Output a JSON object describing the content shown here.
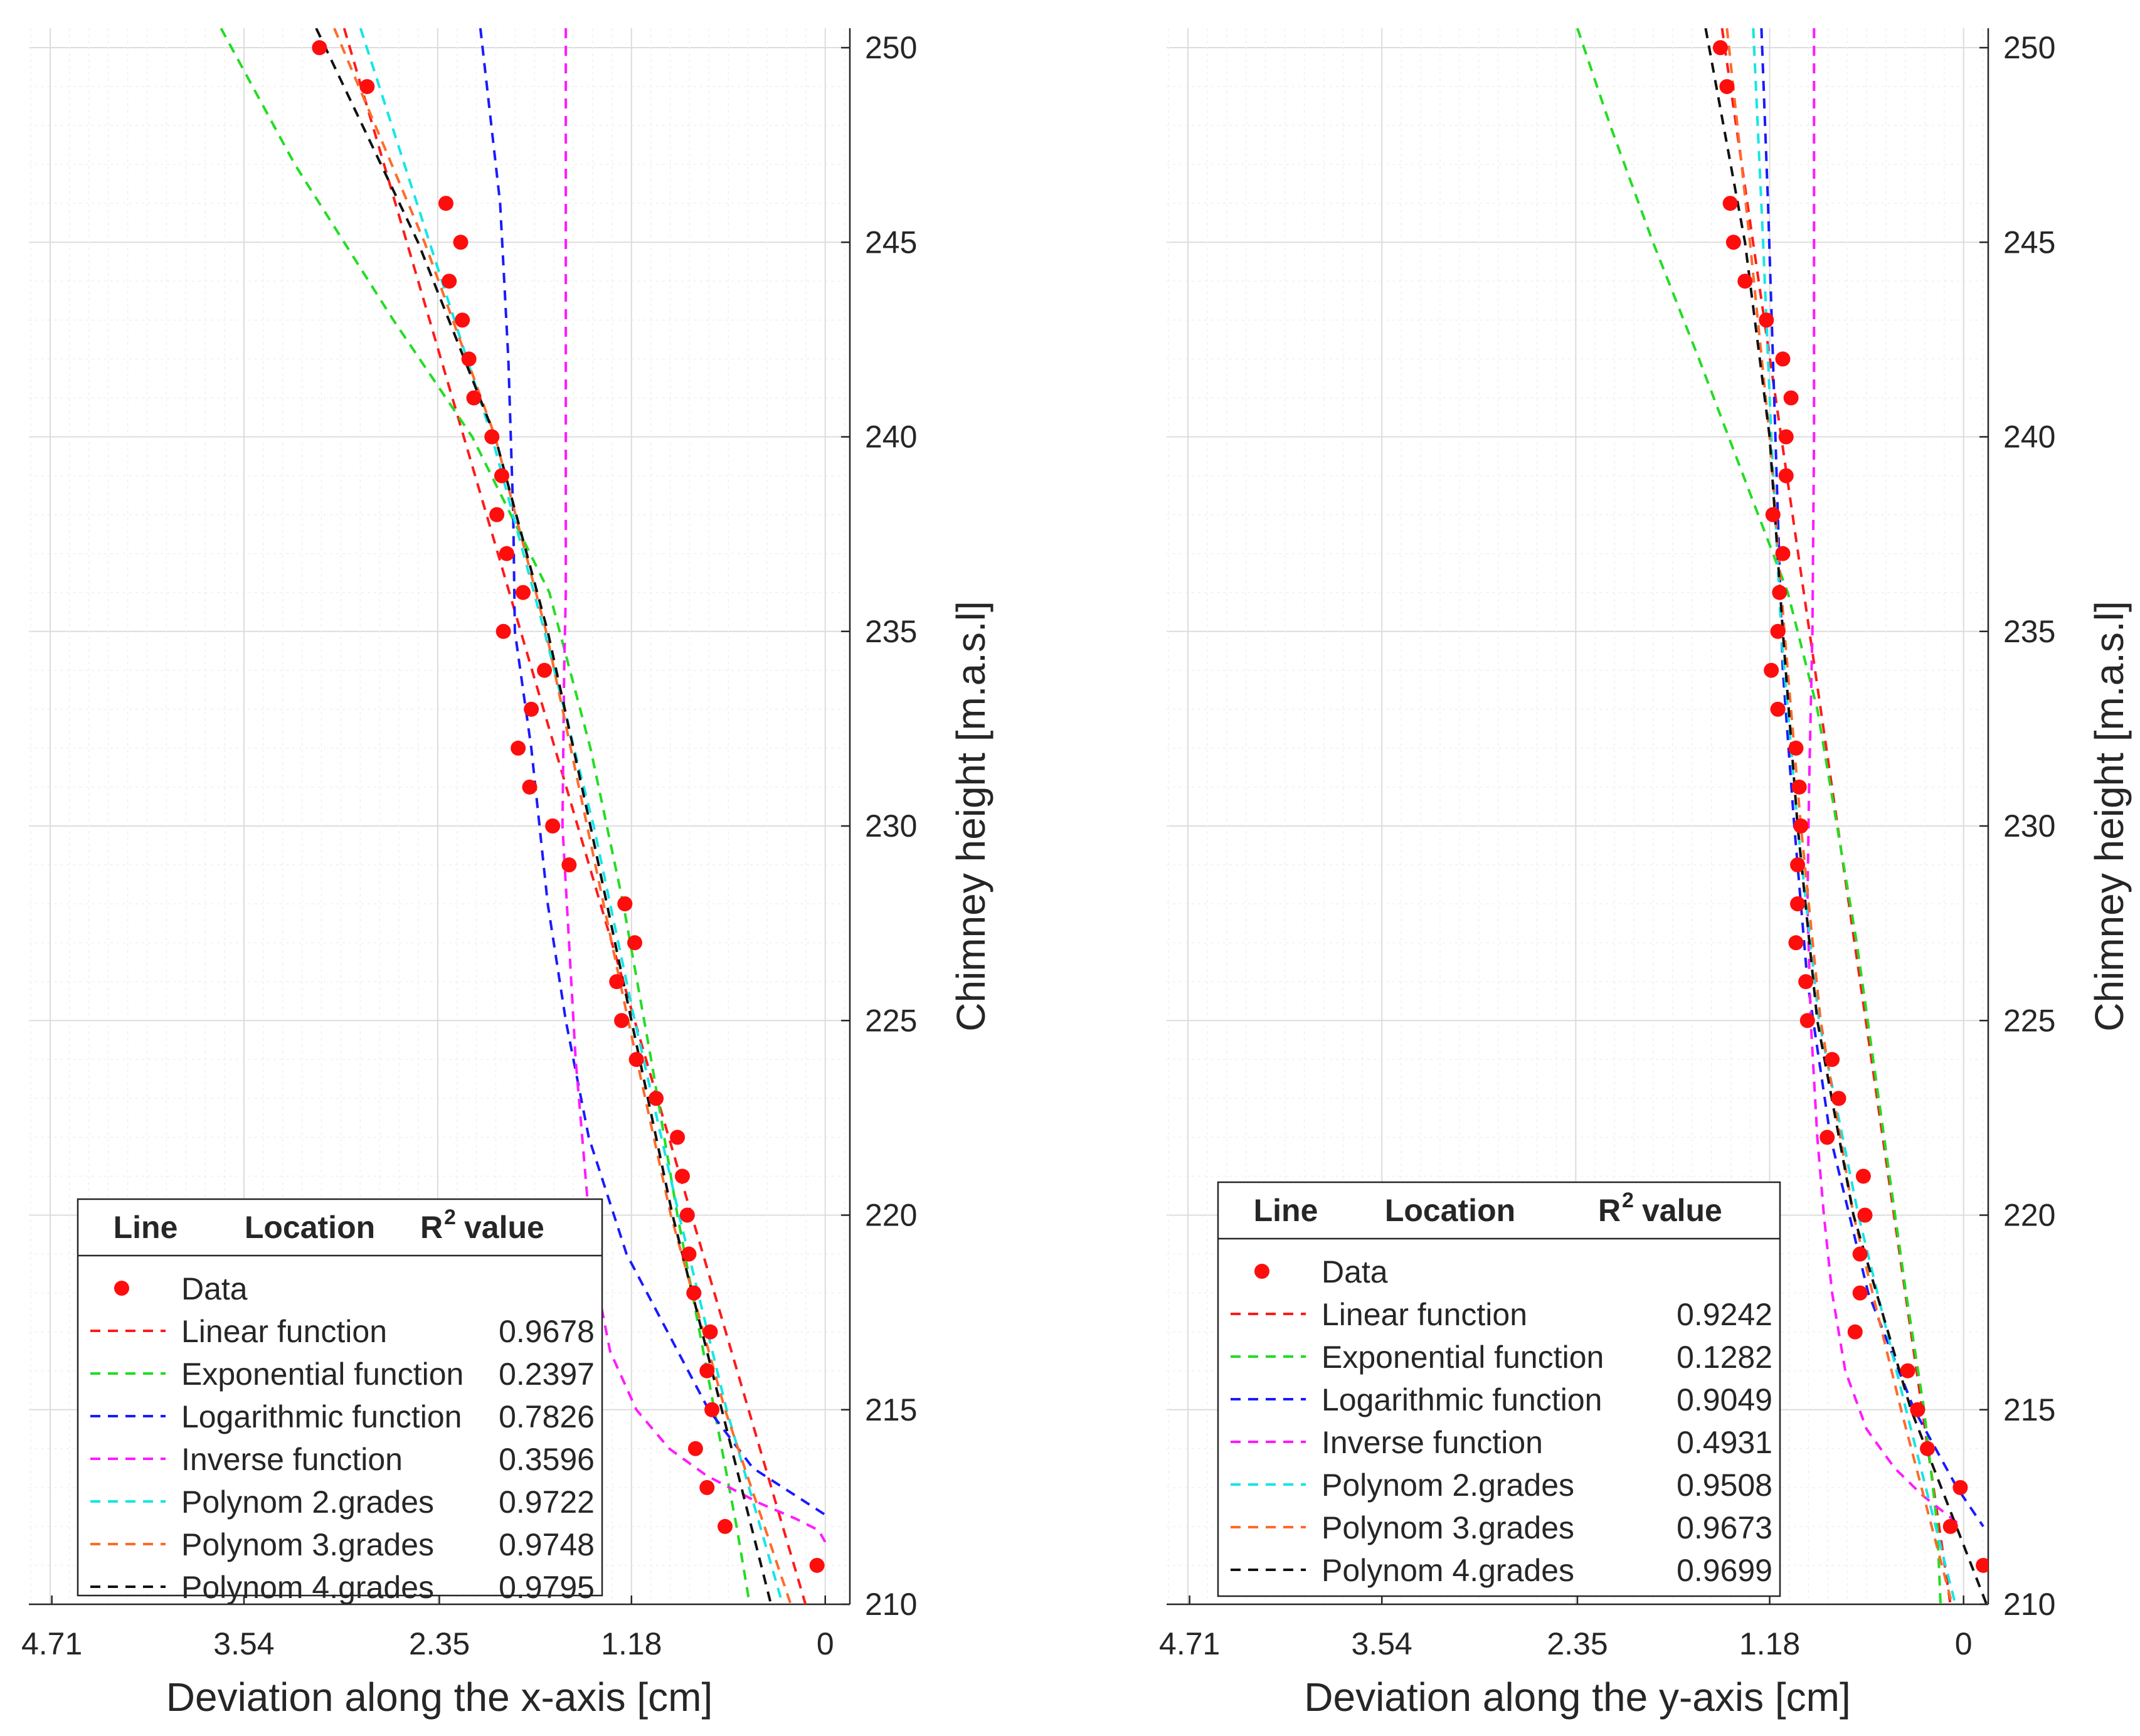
{
  "chart_data": [
    {
      "type": "scatter",
      "id": "x",
      "xlabel": "Deviation along the x-axis [cm]",
      "ylabel": "Chimney height [m.a.s.l]",
      "xlim": [
        4.85,
        -0.15
      ],
      "ylim": [
        210,
        250.5
      ],
      "xticks": [
        "4.71",
        "3.54",
        "2.35",
        "1.18",
        "0"
      ],
      "xtick_values": [
        4.71,
        3.54,
        2.35,
        1.18,
        0
      ],
      "yticks": [
        "210",
        "215",
        "220",
        "225",
        "230",
        "235",
        "240",
        "245",
        "250"
      ],
      "ytick_values": [
        210,
        215,
        220,
        225,
        230,
        235,
        240,
        245,
        250
      ],
      "legend": {
        "headers": [
          "Line",
          "Location",
          "R",
          "value"
        ],
        "data_label": "Data",
        "entries": [
          {
            "name": "Linear function",
            "r2": "0.9678",
            "color": "#ff1a1a"
          },
          {
            "name": "Exponential function",
            "r2": "0.2397",
            "color": "#22dd22"
          },
          {
            "name": "Logarithmic function",
            "r2": "0.7826",
            "color": "#1a1aff"
          },
          {
            "name": "Inverse function",
            "r2": "0.3596",
            "color": "#ff1aff"
          },
          {
            "name": "Polynom 2.grades",
            "r2": "0.9722",
            "color": "#14e6e6"
          },
          {
            "name": "Polynom 3.grades",
            "r2": "0.9748",
            "color": "#ff6a2a"
          },
          {
            "name": "Polynom 4.grades",
            "r2": "0.9795",
            "color": "#111111"
          }
        ]
      },
      "data": {
        "heights": [
          250,
          249,
          246,
          245,
          244,
          243,
          242,
          241,
          240,
          239,
          238,
          237,
          236,
          235,
          234,
          233,
          232,
          231,
          230,
          229,
          228,
          227,
          226,
          225,
          224,
          223,
          222,
          221,
          220,
          219,
          218,
          217,
          216,
          215,
          214,
          213,
          212,
          211
        ],
        "values": [
          3.08,
          2.79,
          2.31,
          2.22,
          2.29,
          2.21,
          2.17,
          2.14,
          2.03,
          1.97,
          2.0,
          1.94,
          1.84,
          1.96,
          1.71,
          1.79,
          1.87,
          1.8,
          1.66,
          1.56,
          1.22,
          1.16,
          1.27,
          1.24,
          1.15,
          1.03,
          0.9,
          0.87,
          0.84,
          0.83,
          0.8,
          0.7,
          0.72,
          0.69,
          0.79,
          0.72,
          0.61,
          0.05
        ]
      },
      "fits": {
        "Linear function": {
          "h": [
            250.5,
            210
          ],
          "v": [
            2.93,
            0.12
          ]
        },
        "Exponential function": {
          "h": [
            250.5,
            247,
            243,
            240,
            236,
            232,
            228,
            224,
            220,
            216,
            212,
            210
          ],
          "v": [
            3.68,
            3.23,
            2.63,
            2.15,
            1.68,
            1.43,
            1.23,
            1.06,
            0.9,
            0.72,
            0.54,
            0.46
          ]
        },
        "Logarithmic function": {
          "h": [
            250.5,
            246,
            242,
            238,
            235,
            232,
            228,
            225,
            222,
            219,
            217,
            215,
            213.5,
            212.3
          ],
          "v": [
            2.1,
            1.98,
            1.93,
            1.9,
            1.89,
            1.79,
            1.69,
            1.58,
            1.44,
            1.21,
            0.96,
            0.71,
            0.44,
            0.0
          ]
        },
        "Inverse function": {
          "h": [
            250.5,
            240,
            236,
            234,
            230,
            227,
            224,
            222,
            220,
            218,
            216.5,
            215,
            214,
            213.3,
            212.6,
            212.2,
            211.9,
            211.6
          ],
          "v": [
            1.58,
            1.58,
            1.58,
            1.59,
            1.6,
            1.56,
            1.52,
            1.48,
            1.44,
            1.38,
            1.31,
            1.15,
            0.95,
            0.72,
            0.4,
            0.18,
            0.04,
            0.0
          ]
        },
        "Polynom 2.grades": {
          "h": [
            250.5,
            245,
            240,
            235,
            230,
            225,
            220,
            215,
            210
          ],
          "v": [
            2.83,
            2.41,
            2.03,
            1.71,
            1.41,
            1.16,
            0.89,
            0.6,
            0.26
          ]
        },
        "Polynom 3.grades": {
          "h": [
            250.5,
            245,
            240,
            235,
            230,
            225,
            220,
            215,
            210
          ],
          "v": [
            2.99,
            2.44,
            2.01,
            1.7,
            1.45,
            1.2,
            0.94,
            0.61,
            0.21
          ]
        },
        "Polynom 4.grades": {
          "h": [
            250.5,
            245,
            240,
            235,
            230,
            225,
            220,
            215,
            210
          ],
          "v": [
            3.1,
            2.48,
            2.01,
            1.69,
            1.43,
            1.18,
            0.93,
            0.63,
            0.33
          ]
        }
      }
    },
    {
      "type": "scatter",
      "id": "y",
      "xlabel": "Deviation along the y-axis [cm]",
      "ylabel": "Chimney height [m.a.s.l]",
      "xlim": [
        4.85,
        -0.15
      ],
      "ylim": [
        210,
        250.5
      ],
      "xticks": [
        "4.71",
        "3.54",
        "2.35",
        "1.18",
        "0"
      ],
      "xtick_values": [
        4.71,
        3.54,
        2.35,
        1.18,
        0
      ],
      "yticks": [
        "210",
        "215",
        "220",
        "225",
        "230",
        "235",
        "240",
        "245",
        "250"
      ],
      "ytick_values": [
        210,
        215,
        220,
        225,
        230,
        235,
        240,
        245,
        250
      ],
      "legend": {
        "headers": [
          "Line",
          "Location",
          "R",
          "value"
        ],
        "data_label": "Data",
        "entries": [
          {
            "name": "Linear function",
            "r2": "0.9242",
            "color": "#ff1a1a"
          },
          {
            "name": "Exponential function",
            "r2": "0.1282",
            "color": "#22dd22"
          },
          {
            "name": "Logarithmic function",
            "r2": "0.9049",
            "color": "#1a1aff"
          },
          {
            "name": "Inverse function",
            "r2": "0.4931",
            "color": "#ff1aff"
          },
          {
            "name": "Polynom 2.grades",
            "r2": "0.9508",
            "color": "#14e6e6"
          },
          {
            "name": "Polynom 3.grades",
            "r2": "0.9673",
            "color": "#ff6a2a"
          },
          {
            "name": "Polynom 4.grades",
            "r2": "0.9699",
            "color": "#111111"
          }
        ]
      },
      "data": {
        "heights": [
          250,
          249,
          246,
          245,
          244,
          243,
          242,
          241,
          240,
          239,
          238,
          237,
          236,
          235,
          234,
          233,
          232,
          231,
          230,
          229,
          228,
          227,
          226,
          225,
          224,
          223,
          222,
          221,
          220,
          219,
          218,
          217,
          216,
          215,
          214,
          213,
          212,
          211
        ],
        "values": [
          1.48,
          1.44,
          1.42,
          1.4,
          1.33,
          1.2,
          1.1,
          1.05,
          1.08,
          1.08,
          1.16,
          1.1,
          1.12,
          1.13,
          1.17,
          1.13,
          1.02,
          1.0,
          0.99,
          1.01,
          1.01,
          1.02,
          0.96,
          0.95,
          0.8,
          0.76,
          0.83,
          0.61,
          0.6,
          0.63,
          0.63,
          0.66,
          0.34,
          0.28,
          0.22,
          0.02,
          0.08,
          -0.12
        ]
      },
      "fits": {
        "Linear function": {
          "h": [
            250.5,
            210
          ],
          "v": [
            1.47,
            0.08
          ]
        },
        "Exponential function": {
          "h": [
            250.5,
            248,
            245,
            242,
            239,
            236,
            233,
            230,
            227,
            224,
            221,
            218,
            215,
            212,
            210
          ],
          "v": [
            2.35,
            2.15,
            1.89,
            1.61,
            1.34,
            1.07,
            0.89,
            0.77,
            0.65,
            0.55,
            0.45,
            0.35,
            0.24,
            0.16,
            0.14
          ]
        },
        "Logarithmic function": {
          "h": [
            250.5,
            246,
            242,
            238,
            234,
            230,
            226,
            222,
            218,
            215,
            213,
            212
          ],
          "v": [
            1.23,
            1.19,
            1.16,
            1.13,
            1.1,
            1.03,
            0.95,
            0.81,
            0.58,
            0.3,
            0.04,
            -0.12
          ]
        },
        "Inverse function": {
          "h": [
            250.5,
            240,
            235,
            231,
            228,
            225,
            222,
            220,
            218,
            216,
            214.5,
            213.5,
            212.8,
            212.3,
            212.0
          ],
          "v": [
            0.91,
            0.91,
            0.92,
            0.94,
            0.95,
            0.93,
            0.89,
            0.85,
            0.8,
            0.72,
            0.59,
            0.42,
            0.25,
            0.1,
            0.01
          ]
        },
        "Polynom 2.grades": {
          "h": [
            250.5,
            245,
            240,
            235,
            230,
            225,
            220,
            215,
            210
          ],
          "v": [
            1.28,
            1.22,
            1.17,
            1.11,
            1.01,
            0.88,
            0.64,
            0.35,
            0.05
          ]
        },
        "Polynom 3.grades": {
          "h": [
            250.5,
            245,
            240,
            235,
            230,
            225,
            220,
            215,
            210
          ],
          "v": [
            1.44,
            1.3,
            1.18,
            1.09,
            0.99,
            0.87,
            0.67,
            0.38,
            0.07
          ]
        },
        "Polynom 4.grades": {
          "h": [
            250.5,
            245,
            240,
            235,
            230,
            225,
            220,
            215,
            210
          ],
          "v": [
            1.57,
            1.33,
            1.18,
            1.1,
            1.01,
            0.89,
            0.67,
            0.32,
            -0.14
          ]
        }
      }
    }
  ]
}
